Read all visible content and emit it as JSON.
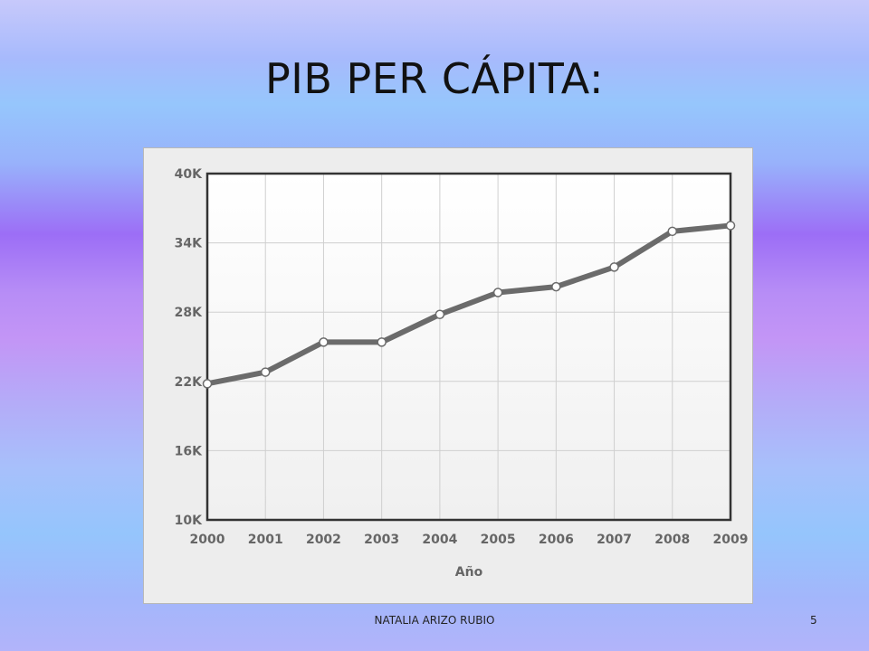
{
  "slide": {
    "title": "PIB PER CÁPITA:",
    "footer_author": "NATALIA ARIZO RUBIO",
    "page_number": "5"
  },
  "chart_data": {
    "type": "line",
    "title": "",
    "xlabel": "Año",
    "ylabel": "",
    "x": [
      "2000",
      "2001",
      "2002",
      "2003",
      "2004",
      "2005",
      "2006",
      "2007",
      "2008",
      "2009"
    ],
    "series": [
      {
        "values": [
          21800,
          22800,
          25400,
          25400,
          27800,
          29700,
          30200,
          31900,
          35000,
          35500
        ]
      }
    ],
    "ylim": [
      10000,
      40000
    ],
    "yticks": [
      10000,
      16000,
      22000,
      28000,
      34000,
      40000
    ],
    "ytick_labels": [
      "10K",
      "16K",
      "22K",
      "28K",
      "34K",
      "40K"
    ],
    "grid": true,
    "colors": {
      "line": "#6b6b6b",
      "marker_fill": "#ffffff",
      "plot_bg_top": "#ffffff",
      "plot_bg_bottom": "#f0f0f0"
    }
  }
}
